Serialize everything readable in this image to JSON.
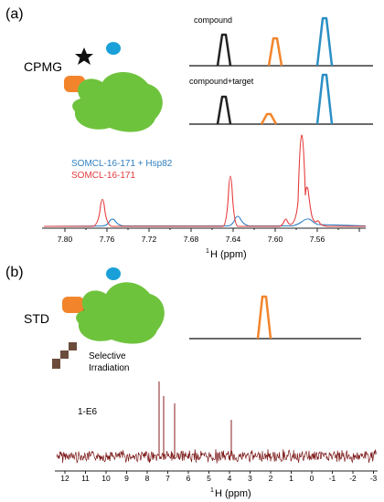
{
  "panel_a": {
    "label": "(a)",
    "method": "CPMG",
    "schematic": {
      "trace_top_label": "compound",
      "trace_bottom_label": "compound+target"
    },
    "legend": [
      {
        "text": "SOMCL-16-171 + Hsp82",
        "color": "#2f7fc0"
      },
      {
        "text": "SOMCL-16-171",
        "color": "#e63b3b"
      }
    ],
    "axis": {
      "ticks": [
        "7.80",
        "7.76",
        "7.72",
        "7.68",
        "7.64",
        "7.60",
        "7.56"
      ],
      "label_sup": "1",
      "label_main": "H (ppm)"
    }
  },
  "panel_b": {
    "label": "(b)",
    "method": "STD",
    "irradiation_line1": "Selective",
    "irradiation_line2": "Irradiation",
    "compound_id": "1-E6",
    "axis": {
      "ticks": [
        "12",
        "11",
        "10",
        "9",
        "8",
        "7",
        "6",
        "5",
        "4",
        "3",
        "2",
        "1",
        "0",
        "-1",
        "-2",
        "-3"
      ],
      "label_sup": "1",
      "label_main": "H (ppm)"
    }
  },
  "colors": {
    "protein": "#6ec33c",
    "ligand_orange": "#f2852c",
    "ligand_blue": "#1aa0d8",
    "black_peak": "#222222",
    "orange_peak": "#f2852c",
    "blue_peak": "#2a8fc4",
    "spectrum_red": "#e63b3b",
    "spectrum_blue": "#2f7fc0",
    "std_noise": "#7a1616",
    "steps": "#6b4c3b"
  }
}
